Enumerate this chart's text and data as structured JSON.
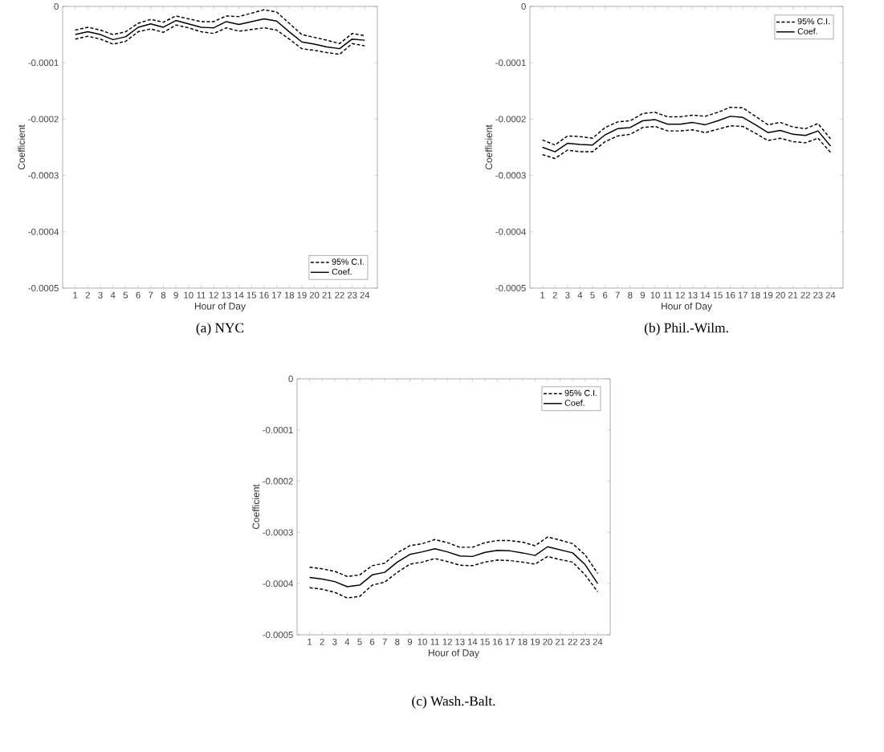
{
  "chart_data": [
    {
      "type": "line",
      "xlabel": "Hour of Day",
      "ylabel": "Coefficient",
      "annotations": [
        "(a) NYC"
      ],
      "legend": "bottom right",
      "marker": "none",
      "x": [
        1,
        2,
        3,
        4,
        5,
        6,
        7,
        8,
        9,
        10,
        11,
        12,
        13,
        14,
        15,
        16,
        17,
        18,
        19,
        20,
        21,
        22,
        23,
        24
      ],
      "xlim": [
        0,
        25
      ],
      "xticks": [
        1,
        2,
        3,
        4,
        5,
        6,
        7,
        8,
        9,
        10,
        11,
        12,
        13,
        14,
        15,
        16,
        17,
        18,
        19,
        20,
        21,
        22,
        23,
        24
      ],
      "ylim": [
        -0.0005,
        0
      ],
      "yticks": [
        -0.0005,
        -0.0004,
        -0.0003,
        -0.0002,
        -0.0001,
        0
      ],
      "series": [
        {
          "name": "95% C.I.",
          "color": "#000000",
          "line_style": "dashed",
          "values": [
            -4.2e-05,
            -3.7e-05,
            -4.2e-05,
            -5e-05,
            -4.5e-05,
            -3e-05,
            -2.3e-05,
            -2.8e-05,
            -1.7e-05,
            -2.2e-05,
            -2.7e-05,
            -2.7e-05,
            -1.7e-05,
            -1.8e-05,
            -1.2e-05,
            -6e-06,
            -1e-05,
            -3e-05,
            -5e-05,
            -5.5e-05,
            -6e-05,
            -6.6e-05,
            -4.8e-05,
            -5.2e-05
          ]
        },
        {
          "name": "Coef.",
          "color": "#000000",
          "line_style": "solid",
          "values": [
            -5e-05,
            -4.5e-05,
            -5e-05,
            -5.9e-05,
            -5.4e-05,
            -3.7e-05,
            -3.1e-05,
            -3.7e-05,
            -2.5e-05,
            -3.1e-05,
            -3.7e-05,
            -3.8e-05,
            -2.7e-05,
            -3.2e-05,
            -2.7e-05,
            -2.2e-05,
            -2.6e-05,
            -4.5e-05,
            -6.3e-05,
            -6.7e-05,
            -7.2e-05,
            -7.5e-05,
            -5.8e-05,
            -6e-05
          ]
        },
        {
          "color": "#000000",
          "line_style": "dashed",
          "values": [
            -5.8e-05,
            -5.3e-05,
            -5.8e-05,
            -6.7e-05,
            -6.2e-05,
            -4.5e-05,
            -4e-05,
            -4.6e-05,
            -3.3e-05,
            -3.8e-05,
            -4.5e-05,
            -4.8e-05,
            -3.8e-05,
            -4.4e-05,
            -4.1e-05,
            -3.8e-05,
            -4.2e-05,
            -5.8e-05,
            -7.5e-05,
            -7.8e-05,
            -8.2e-05,
            -8.5e-05,
            -6.6e-05,
            -7e-05
          ]
        }
      ]
    },
    {
      "type": "line",
      "xlabel": "Hour of Day",
      "ylabel": "Coefficient",
      "annotations": [
        "(b) Phil.-Wilm."
      ],
      "legend": "top right",
      "marker": "none",
      "x": [
        1,
        2,
        3,
        4,
        5,
        6,
        7,
        8,
        9,
        10,
        11,
        12,
        13,
        14,
        15,
        16,
        17,
        18,
        19,
        20,
        21,
        22,
        23,
        24
      ],
      "xlim": [
        0,
        25
      ],
      "xticks": [
        1,
        2,
        3,
        4,
        5,
        6,
        7,
        8,
        9,
        10,
        11,
        12,
        13,
        14,
        15,
        16,
        17,
        18,
        19,
        20,
        21,
        22,
        23,
        24
      ],
      "ylim": [
        -0.0005,
        0
      ],
      "yticks": [
        -0.0005,
        -0.0004,
        -0.0003,
        -0.0002,
        -0.0001,
        0
      ],
      "series": [
        {
          "name": "95% C.I.",
          "color": "#000000",
          "line_style": "dashed",
          "values": [
            -0.000237,
            -0.000246,
            -0.00023,
            -0.000231,
            -0.000234,
            -0.000215,
            -0.000205,
            -0.000203,
            -0.00019,
            -0.000188,
            -0.000196,
            -0.000196,
            -0.000193,
            -0.000195,
            -0.000188,
            -0.000179,
            -0.00018,
            -0.000195,
            -0.00021,
            -0.000206,
            -0.000214,
            -0.000217,
            -0.000208,
            -0.000235
          ]
        },
        {
          "name": "Coef.",
          "color": "#000000",
          "line_style": "solid",
          "values": [
            -0.00025,
            -0.000258,
            -0.000243,
            -0.000245,
            -0.000246,
            -0.000228,
            -0.000217,
            -0.000215,
            -0.000203,
            -0.000201,
            -0.000209,
            -0.000209,
            -0.000206,
            -0.00021,
            -0.000203,
            -0.000195,
            -0.000197,
            -0.00021,
            -0.000224,
            -0.00022,
            -0.000227,
            -0.000229,
            -0.000221,
            -0.000248
          ]
        },
        {
          "color": "#000000",
          "line_style": "dashed",
          "values": [
            -0.000263,
            -0.00027,
            -0.000255,
            -0.000258,
            -0.000258,
            -0.00024,
            -0.00023,
            -0.000227,
            -0.000215,
            -0.000213,
            -0.000221,
            -0.000221,
            -0.000219,
            -0.000224,
            -0.000218,
            -0.000212,
            -0.000213,
            -0.000225,
            -0.000238,
            -0.000234,
            -0.00024,
            -0.000242,
            -0.000234,
            -0.000259
          ]
        }
      ]
    },
    {
      "type": "line",
      "xlabel": "Hour of Day",
      "ylabel": "Coefficient",
      "annotations": [
        "(c) Wash.-Balt."
      ],
      "legend": "top right",
      "marker": "none",
      "x": [
        1,
        2,
        3,
        4,
        5,
        6,
        7,
        8,
        9,
        10,
        11,
        12,
        13,
        14,
        15,
        16,
        17,
        18,
        19,
        20,
        21,
        22,
        23,
        24
      ],
      "xlim": [
        0,
        25
      ],
      "xticks": [
        1,
        2,
        3,
        4,
        5,
        6,
        7,
        8,
        9,
        10,
        11,
        12,
        13,
        14,
        15,
        16,
        17,
        18,
        19,
        20,
        21,
        22,
        23,
        24
      ],
      "ylim": [
        -0.0005,
        0
      ],
      "yticks": [
        -0.0005,
        -0.0004,
        -0.0003,
        -0.0002,
        -0.0001,
        0
      ],
      "series": [
        {
          "name": "95% C.I.",
          "color": "#000000",
          "line_style": "dashed",
          "values": [
            -0.000368,
            -0.000371,
            -0.000376,
            -0.000386,
            -0.000383,
            -0.000365,
            -0.00036,
            -0.00034,
            -0.000326,
            -0.000322,
            -0.000314,
            -0.00032,
            -0.000329,
            -0.000329,
            -0.00032,
            -0.000316,
            -0.000316,
            -0.000319,
            -0.000326,
            -0.000309,
            -0.000315,
            -0.000322,
            -0.000344,
            -0.00038
          ]
        },
        {
          "name": "Coef.",
          "color": "#000000",
          "line_style": "solid",
          "values": [
            -0.000388,
            -0.000391,
            -0.000396,
            -0.000406,
            -0.000403,
            -0.000383,
            -0.000378,
            -0.000358,
            -0.000343,
            -0.000338,
            -0.000332,
            -0.000338,
            -0.000346,
            -0.000347,
            -0.000339,
            -0.000335,
            -0.000336,
            -0.00034,
            -0.000345,
            -0.000328,
            -0.000334,
            -0.00034,
            -0.000363,
            -0.0004
          ]
        },
        {
          "color": "#000000",
          "line_style": "dashed",
          "values": [
            -0.000408,
            -0.000411,
            -0.000417,
            -0.000428,
            -0.000425,
            -0.000403,
            -0.000397,
            -0.000378,
            -0.000362,
            -0.000358,
            -0.000351,
            -0.000357,
            -0.000364,
            -0.000365,
            -0.000358,
            -0.000354,
            -0.000355,
            -0.000358,
            -0.000362,
            -0.000347,
            -0.000353,
            -0.000358,
            -0.000383,
            -0.000416
          ]
        }
      ]
    }
  ]
}
